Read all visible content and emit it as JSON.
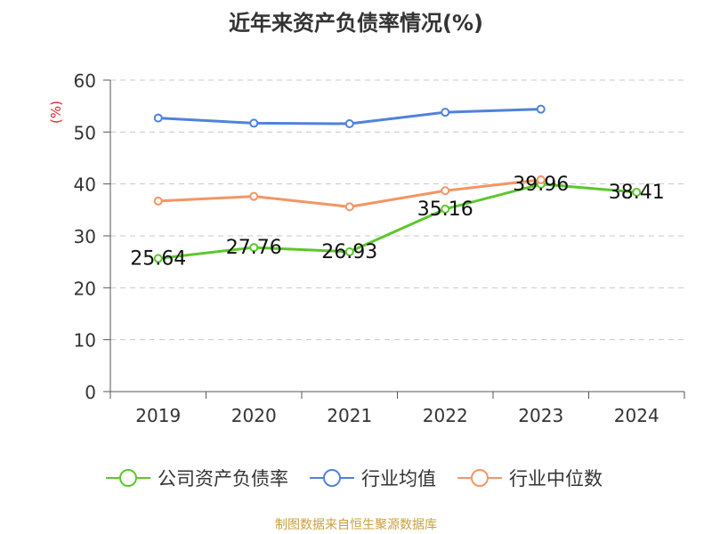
{
  "chart_data": {
    "type": "line",
    "title": "近年来资产负债率情况(%)",
    "ylabel": "(%)",
    "categories": [
      "2019",
      "2020",
      "2021",
      "2022",
      "2023",
      "2024"
    ],
    "ylim": [
      0,
      60
    ],
    "yticks": [
      0,
      10,
      20,
      30,
      40,
      50,
      60
    ],
    "grid": true,
    "legend_position": "bottom",
    "series": [
      {
        "name": "公司资产负债率",
        "color": "#5cc72c",
        "values": [
          25.64,
          27.76,
          26.93,
          35.16,
          39.96,
          38.41
        ],
        "labels": [
          "25.64",
          "27.76",
          "26.93",
          "35.16",
          "39.96",
          "38.41"
        ]
      },
      {
        "name": "行业均值",
        "color": "#4f82dc",
        "values": [
          52.7,
          51.7,
          51.6,
          53.8,
          54.4,
          null
        ]
      },
      {
        "name": "行业中位数",
        "color": "#f39564",
        "values": [
          36.7,
          37.6,
          35.6,
          38.7,
          40.8,
          null
        ]
      }
    ]
  },
  "source_note": "制图数据来自恒生聚源数据库"
}
